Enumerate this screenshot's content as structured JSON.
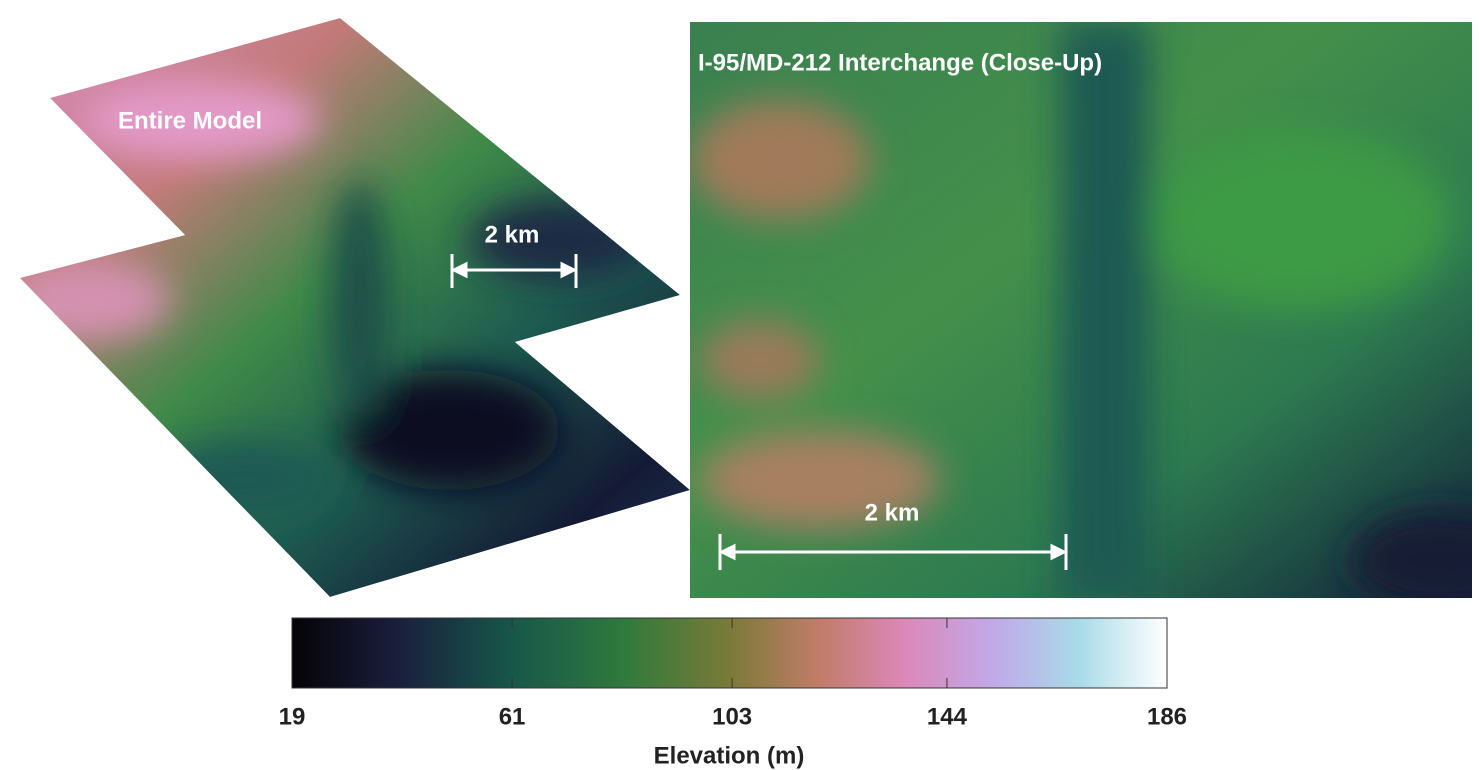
{
  "panels": [
    {
      "label": "Entire Model",
      "scale_bar": "2 km"
    },
    {
      "label": "I-95/MD-212 Interchange (Close-Up)",
      "scale_bar": "2 km"
    }
  ],
  "colorbar": {
    "label": "Elevation (m)",
    "lim": [
      19,
      186
    ],
    "ticks": [
      19,
      61,
      103,
      144,
      186
    ]
  }
}
